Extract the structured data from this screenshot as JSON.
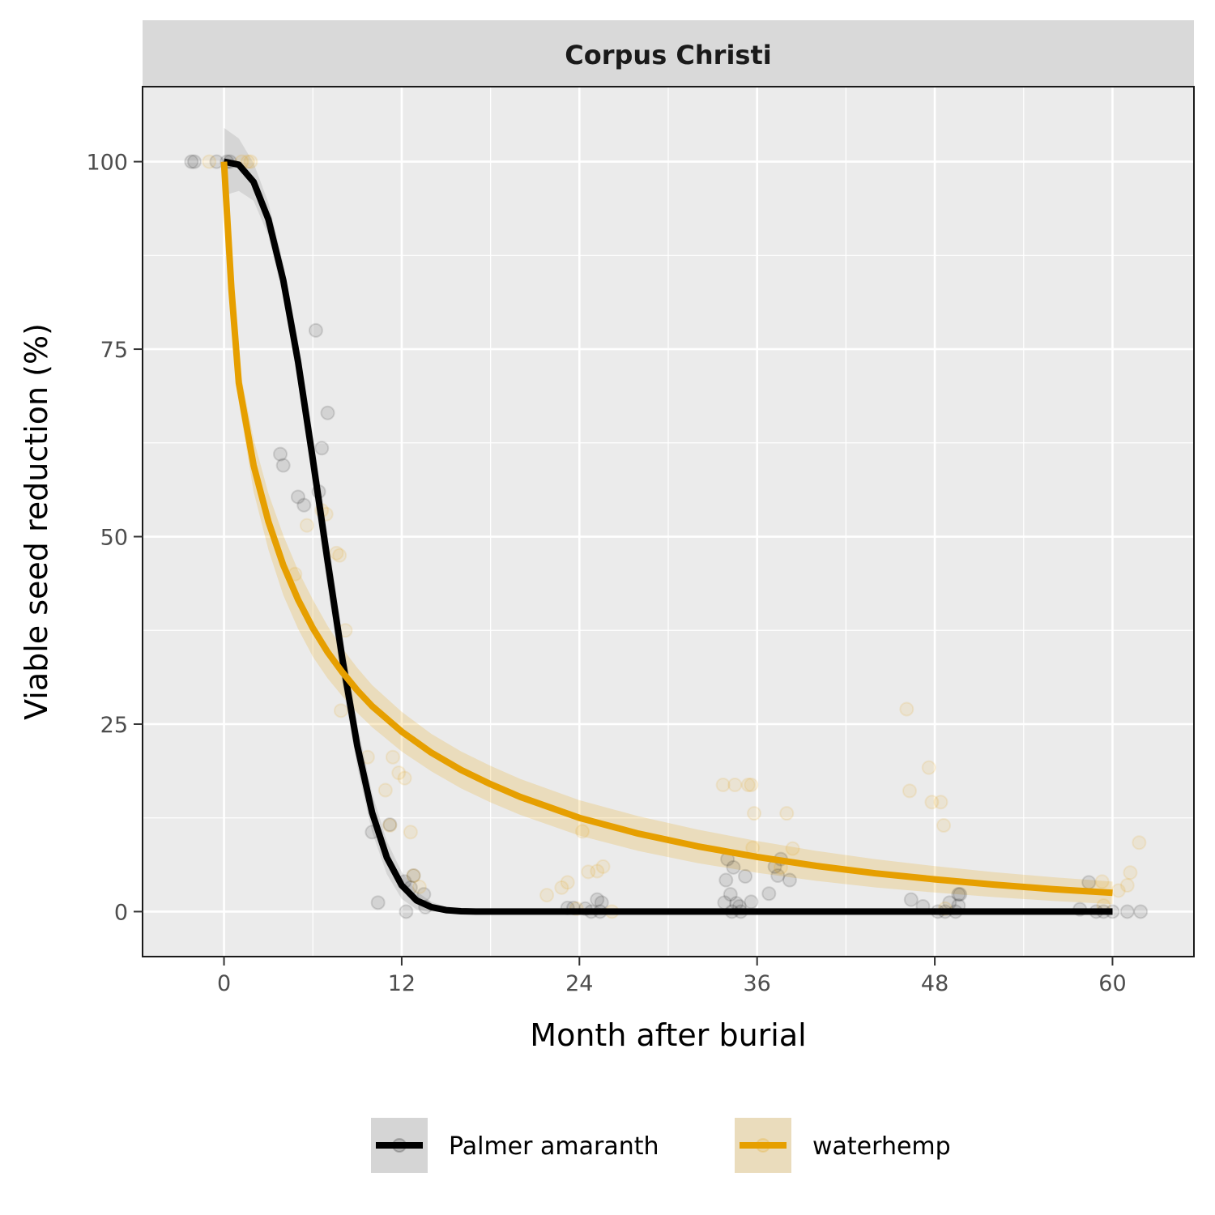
{
  "chart_data": {
    "type": "scatter",
    "facet": "Corpus Christi",
    "xlabel": "Month after burial",
    "ylabel": "Viable seed reduction (%)",
    "xlim": [
      -5.5,
      65.5
    ],
    "ylim": [
      -6,
      110
    ],
    "x_ticks": [
      0,
      12,
      24,
      36,
      48,
      60
    ],
    "y_ticks": [
      0,
      25,
      50,
      75,
      100
    ],
    "x_tick_labels": [
      "0",
      "12",
      "24",
      "36",
      "48",
      "60"
    ],
    "y_tick_labels": [
      "0",
      "25",
      "50",
      "75",
      "100"
    ],
    "grid": true,
    "legend_position": "bottom",
    "series": [
      {
        "name": "Palmer amaranth",
        "color": "#000000",
        "ribbon_color": "#7f7f7f",
        "points": [
          [
            -2.2,
            100
          ],
          [
            -2,
            100
          ],
          [
            -0.5,
            100
          ],
          [
            0.2,
            100
          ],
          [
            0.4,
            100
          ],
          [
            6.2,
            77.5
          ],
          [
            7,
            66.5
          ],
          [
            6.6,
            61.8
          ],
          [
            3.8,
            61
          ],
          [
            4,
            59.5
          ],
          [
            5,
            55.3
          ],
          [
            5.4,
            54.2
          ],
          [
            6.4,
            56
          ],
          [
            10,
            10.6
          ],
          [
            11.2,
            11.6
          ],
          [
            10.4,
            1.2
          ],
          [
            12.2,
            4
          ],
          [
            12.6,
            3.2
          ],
          [
            12.8,
            4.8
          ],
          [
            13.5,
            2.3
          ],
          [
            12.3,
            0
          ],
          [
            13.6,
            0.6
          ],
          [
            23.2,
            0.5
          ],
          [
            23.6,
            0.5
          ],
          [
            24.4,
            0.4
          ],
          [
            25.2,
            1.6
          ],
          [
            25.5,
            1.2
          ],
          [
            24.8,
            0
          ],
          [
            25.4,
            0
          ],
          [
            33.8,
            1.2
          ],
          [
            33.9,
            4.2
          ],
          [
            34,
            7
          ],
          [
            34.2,
            2.3
          ],
          [
            34.4,
            5.9
          ],
          [
            34.6,
            1.1
          ],
          [
            34.8,
            0.7
          ],
          [
            34.3,
            0
          ],
          [
            35.2,
            4.7
          ],
          [
            35.6,
            1.3
          ],
          [
            34.9,
            0
          ],
          [
            36.8,
            2.4
          ],
          [
            37.4,
            4.8
          ],
          [
            37.6,
            7
          ],
          [
            37.2,
            6
          ],
          [
            38.2,
            4.2
          ],
          [
            46.4,
            1.6
          ],
          [
            47.2,
            0.7
          ],
          [
            48.2,
            0
          ],
          [
            48.7,
            0
          ],
          [
            49,
            1.2
          ],
          [
            49.4,
            0
          ],
          [
            49.6,
            2.3
          ],
          [
            49.7,
            2.3
          ],
          [
            49.6,
            0.8
          ],
          [
            57.8,
            0.3
          ],
          [
            58.4,
            3.9
          ],
          [
            58.9,
            0
          ],
          [
            59.4,
            0
          ],
          [
            60,
            0
          ],
          [
            61,
            0
          ],
          [
            61.9,
            0
          ]
        ],
        "fit": [
          [
            0,
            100
          ],
          [
            1,
            99.6
          ],
          [
            2,
            97.3
          ],
          [
            3,
            92.3
          ],
          [
            4,
            84.2
          ],
          [
            5,
            73.3
          ],
          [
            6,
            60.3
          ],
          [
            7,
            46.7
          ],
          [
            8,
            33.6
          ],
          [
            9,
            22.1
          ],
          [
            10,
            13.2
          ],
          [
            11,
            7.2
          ],
          [
            12,
            3.5
          ],
          [
            13,
            1.5
          ],
          [
            14,
            0.6
          ],
          [
            15,
            0.2
          ],
          [
            16,
            0.05
          ],
          [
            17,
            0
          ],
          [
            20,
            0
          ],
          [
            30,
            0
          ],
          [
            40,
            0
          ],
          [
            50,
            0
          ],
          [
            60,
            0
          ]
        ],
        "ribbon_half_width": [
          [
            0,
            4.5
          ],
          [
            1,
            3.5
          ],
          [
            2,
            2.5
          ],
          [
            3,
            2.2
          ],
          [
            4,
            2.3
          ],
          [
            5,
            2.8
          ],
          [
            6,
            3.3
          ],
          [
            7,
            3.5
          ],
          [
            8,
            3.2
          ],
          [
            9,
            2.8
          ],
          [
            10,
            2.6
          ],
          [
            11,
            2.2
          ],
          [
            12,
            1.8
          ],
          [
            13,
            1.2
          ],
          [
            14,
            0.7
          ],
          [
            15,
            0.4
          ],
          [
            16,
            0.2
          ],
          [
            17,
            0
          ],
          [
            60,
            0
          ]
        ]
      },
      {
        "name": "waterhemp",
        "color": "#e69f00",
        "ribbon_color": "#e69f00",
        "points": [
          [
            -1,
            100
          ],
          [
            1.2,
            100
          ],
          [
            1.6,
            100
          ],
          [
            1.8,
            100
          ],
          [
            6.6,
            53.5
          ],
          [
            6.9,
            53
          ],
          [
            7.8,
            47.5
          ],
          [
            7.6,
            47.8
          ],
          [
            5.6,
            51.5
          ],
          [
            4.8,
            45
          ],
          [
            8.2,
            37.5
          ],
          [
            7.9,
            26.8
          ],
          [
            9.7,
            20.6
          ],
          [
            11.4,
            20.6
          ],
          [
            11.8,
            18.5
          ],
          [
            12.2,
            17.8
          ],
          [
            10.9,
            16.2
          ],
          [
            11.2,
            11.5
          ],
          [
            12.6,
            10.6
          ],
          [
            12.8,
            4.8
          ],
          [
            13.2,
            3.3
          ],
          [
            21.8,
            2.2
          ],
          [
            22.8,
            3.2
          ],
          [
            23.2,
            3.9
          ],
          [
            23.8,
            0.4
          ],
          [
            24.2,
            10.7
          ],
          [
            24.6,
            5.3
          ],
          [
            25.2,
            5.4
          ],
          [
            25.6,
            6
          ],
          [
            26.2,
            0
          ],
          [
            33.7,
            16.9
          ],
          [
            34.5,
            16.9
          ],
          [
            35.4,
            16.9
          ],
          [
            35.6,
            16.9
          ],
          [
            35.8,
            13.1
          ],
          [
            35.7,
            8.5
          ],
          [
            37.6,
            5.9
          ],
          [
            38,
            13.1
          ],
          [
            38.4,
            8.4
          ],
          [
            46.1,
            27
          ],
          [
            46.3,
            16.1
          ],
          [
            47.6,
            19.2
          ],
          [
            47.8,
            14.6
          ],
          [
            48.4,
            14.6
          ],
          [
            48.6,
            11.5
          ],
          [
            48.7,
            0.4
          ],
          [
            59.3,
            4
          ],
          [
            59.4,
            0.8
          ],
          [
            60.4,
            2.8
          ],
          [
            61,
            3.5
          ],
          [
            61.2,
            5.2
          ],
          [
            61.8,
            9.2
          ]
        ],
        "fit": [
          [
            0,
            100
          ],
          [
            0.5,
            83
          ],
          [
            1,
            70.5
          ],
          [
            2,
            59.5
          ],
          [
            3,
            52
          ],
          [
            4,
            46.2
          ],
          [
            5,
            41.6
          ],
          [
            6,
            37.8
          ],
          [
            7,
            34.6
          ],
          [
            8,
            31.9
          ],
          [
            9,
            29.5
          ],
          [
            10,
            27.4
          ],
          [
            12,
            24
          ],
          [
            14,
            21.2
          ],
          [
            16,
            18.9
          ],
          [
            18,
            17
          ],
          [
            20,
            15.3
          ],
          [
            24,
            12.5
          ],
          [
            28,
            10.4
          ],
          [
            32,
            8.7
          ],
          [
            36,
            7.3
          ],
          [
            40,
            6.1
          ],
          [
            44,
            5.1
          ],
          [
            48,
            4.3
          ],
          [
            52,
            3.6
          ],
          [
            56,
            3
          ],
          [
            60,
            2.5
          ]
        ],
        "ribbon_half_width": [
          [
            0,
            0.5
          ],
          [
            1,
            2.5
          ],
          [
            2,
            3.5
          ],
          [
            4,
            4
          ],
          [
            6,
            3.8
          ],
          [
            8,
            3.2
          ],
          [
            10,
            2.8
          ],
          [
            14,
            2.5
          ],
          [
            20,
            2.4
          ],
          [
            30,
            2.3
          ],
          [
            40,
            2
          ],
          [
            50,
            1.7
          ],
          [
            60,
            1.5
          ]
        ]
      }
    ]
  }
}
